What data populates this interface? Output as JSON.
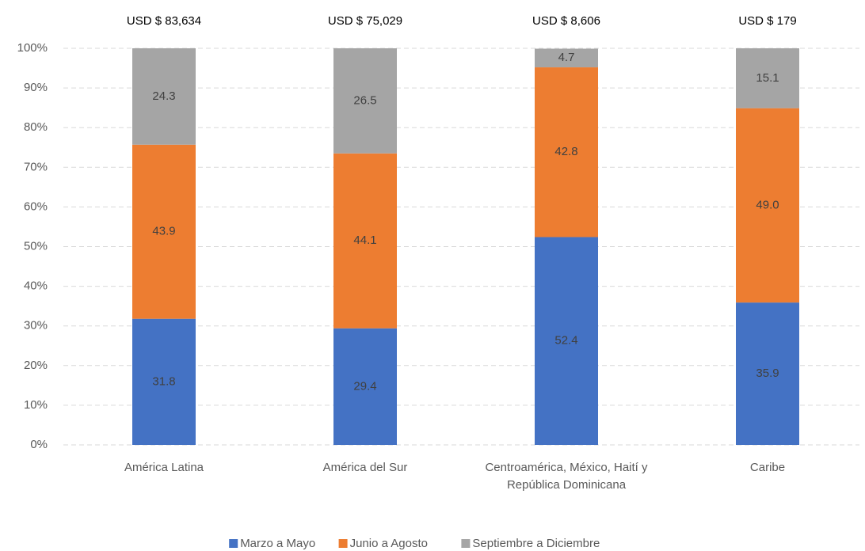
{
  "chart_data": {
    "type": "stacked_bar",
    "categories": [
      "América Latina",
      "América del Sur",
      "Centroamérica, México, Haití y República Dominicana",
      "Caribe"
    ],
    "annotations": [
      "USD $ 83,634",
      "USD $ 75,029",
      "USD $ 8,606",
      "USD $ 179"
    ],
    "series": [
      {
        "name": "Marzo a Mayo",
        "color": "#4472c4",
        "values": [
          31.8,
          29.4,
          52.4,
          35.9
        ]
      },
      {
        "name": "Junio a Agosto",
        "color": "#ed7d31",
        "values": [
          43.9,
          44.1,
          42.8,
          49.0
        ],
        "value_labels": [
          "43.9",
          "44.1",
          "42.8",
          "49.0"
        ]
      },
      {
        "name": "Septiembre a Diciembre",
        "color": "#a5a5a5",
        "values": [
          24.3,
          26.5,
          4.7,
          15.1
        ]
      }
    ],
    "ylim": [
      0,
      100
    ],
    "yticks": [
      {
        "value": 0,
        "label": "0%"
      },
      {
        "value": 10,
        "label": "10%"
      },
      {
        "value": 20,
        "label": "20%"
      },
      {
        "value": 30,
        "label": "30%"
      },
      {
        "value": 40,
        "label": "40%"
      },
      {
        "value": 50,
        "label": "50%"
      },
      {
        "value": 60,
        "label": "60%"
      },
      {
        "value": 70,
        "label": "70%"
      },
      {
        "value": 80,
        "label": "80%"
      },
      {
        "value": 90,
        "label": "90%"
      },
      {
        "value": 100,
        "label": "100%"
      }
    ],
    "grid": true,
    "legend": "bottom"
  }
}
